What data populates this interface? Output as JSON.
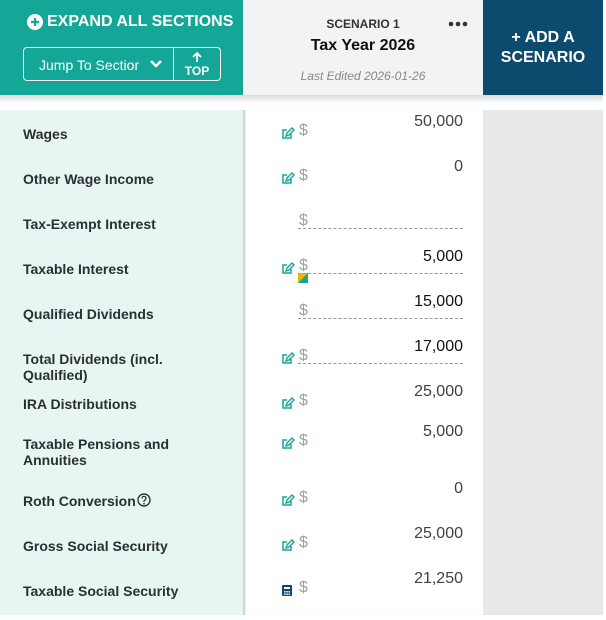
{
  "header": {
    "expand_all": "EXPAND ALL SECTIONS",
    "jump_to": "Jump To Section",
    "top": "TOP",
    "scenario": {
      "label": "SCENARIO 1",
      "title": "Tax Year 2026",
      "last_edited": "Last Edited 2026-01-26"
    },
    "add_scenario": "+ ADD A SCENARIO"
  },
  "currency_symbol": "$",
  "rows": [
    {
      "label": "Wages",
      "value": "50,000"
    },
    {
      "label": "Other Wage Income",
      "value": "0"
    },
    {
      "label": "Tax-Exempt Interest"
    },
    {
      "label": "Taxable Interest",
      "value": "5,000"
    },
    {
      "label": "Qualified Dividends",
      "value": "15,000"
    },
    {
      "label": "Total Dividends (incl. Qualified)",
      "value": "17,000"
    },
    {
      "label": "IRA Distributions",
      "value": "25,000"
    },
    {
      "label": "Taxable Pensions and Annuities",
      "value": "5,000"
    },
    {
      "label": "Roth Conversion",
      "value": "0"
    },
    {
      "label": "Gross Social Security",
      "value": "25,000"
    },
    {
      "label": "Taxable Social Security",
      "value": "21,250"
    }
  ]
}
